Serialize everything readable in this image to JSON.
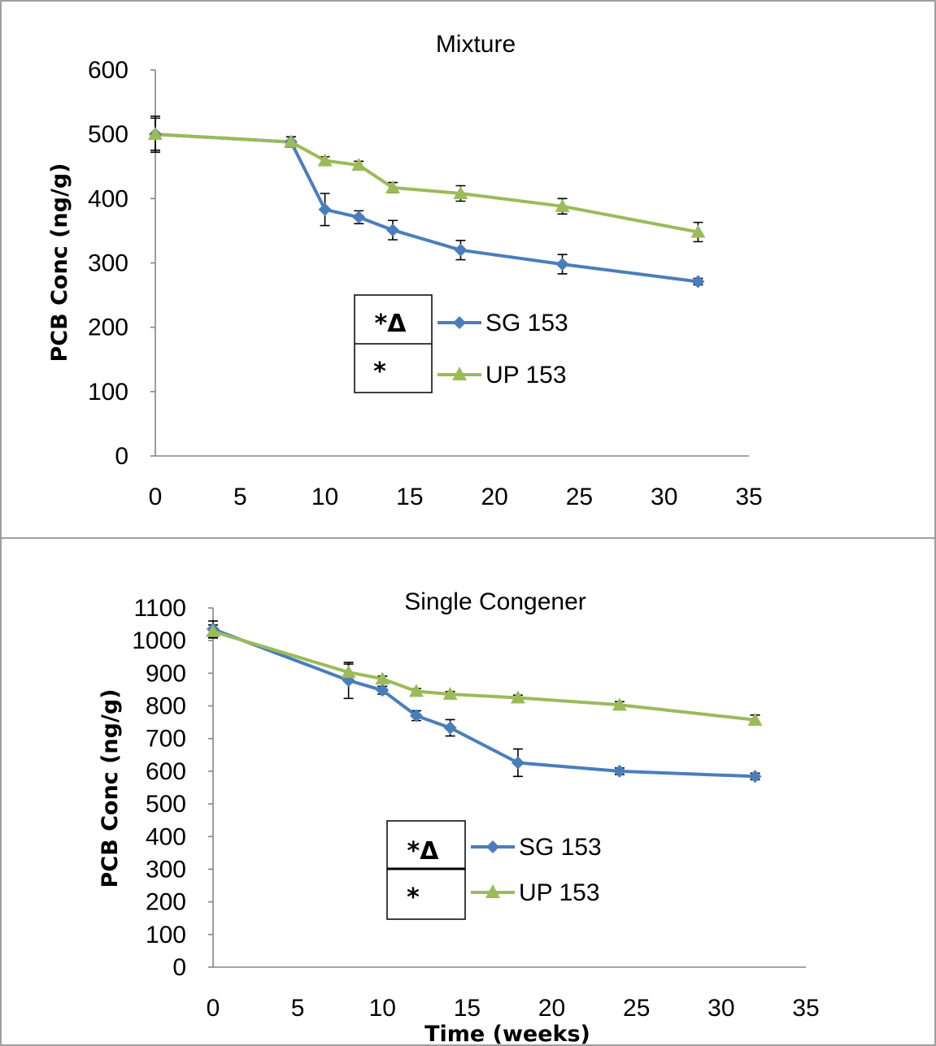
{
  "chart_data": [
    {
      "type": "line",
      "title": "Mixture",
      "ylabel": "PCB Conc (ng/g)",
      "xlabel": "",
      "xlim": [
        0,
        35
      ],
      "ylim": [
        0,
        600
      ],
      "xticks": [
        0,
        5,
        10,
        15,
        20,
        25,
        30,
        35
      ],
      "yticks": [
        0,
        100,
        200,
        300,
        400,
        500,
        600
      ],
      "grid": false,
      "legend_position": "center",
      "series": [
        {
          "name": "SG 153",
          "color": "#4a7ebb",
          "marker": "diamond",
          "significance": "*Δ",
          "x": [
            0,
            8,
            10,
            12,
            14,
            18,
            24,
            32
          ],
          "y": [
            500,
            488,
            383,
            371,
            351,
            320,
            298,
            271
          ],
          "error": [
            25,
            8,
            25,
            10,
            15,
            15,
            15,
            5
          ]
        },
        {
          "name": "UP 153",
          "color": "#9bbb59",
          "marker": "triangle",
          "significance": "*",
          "x": [
            0,
            8,
            10,
            12,
            14,
            18,
            24,
            32
          ],
          "y": [
            500,
            488,
            459,
            452,
            417,
            408,
            388,
            348
          ],
          "error": [
            28,
            8,
            6,
            6,
            8,
            12,
            12,
            15
          ]
        }
      ]
    },
    {
      "type": "line",
      "title": "Single Congener",
      "ylabel": "PCB Conc (ng/g)",
      "xlabel": "Time (weeks)",
      "xlim": [
        0,
        35
      ],
      "ylim": [
        0,
        1100
      ],
      "xticks": [
        0,
        5,
        10,
        15,
        20,
        25,
        30,
        35
      ],
      "yticks": [
        0,
        100,
        200,
        300,
        400,
        500,
        600,
        700,
        800,
        900,
        1000,
        1100
      ],
      "grid": false,
      "legend_position": "center-left",
      "series": [
        {
          "name": "SG 153",
          "color": "#4a7ebb",
          "marker": "diamond",
          "significance": "*Δ",
          "x": [
            0,
            8,
            10,
            12,
            14,
            18,
            24,
            32
          ],
          "y": [
            1035,
            878,
            848,
            770,
            733,
            626,
            600,
            584
          ],
          "error": [
            25,
            55,
            12,
            15,
            25,
            42,
            10,
            10
          ]
        },
        {
          "name": "UP 153",
          "color": "#9bbb59",
          "marker": "triangle",
          "significance": "*",
          "x": [
            0,
            8,
            10,
            12,
            14,
            18,
            24,
            32
          ],
          "y": [
            1028,
            903,
            883,
            845,
            836,
            825,
            803,
            757
          ],
          "error": [
            20,
            25,
            8,
            8,
            8,
            8,
            10,
            15
          ]
        }
      ]
    }
  ]
}
